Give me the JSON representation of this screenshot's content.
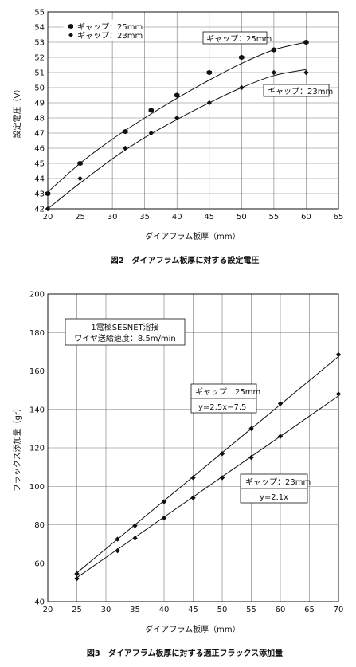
{
  "chart_data": [
    {
      "type": "scatter",
      "caption": "図2　ダイアフラム板厚に対する設定電圧",
      "xlabel": "ダイアフラム板厚（mm）",
      "ylabel": "設定電圧（V）",
      "xlim": [
        20,
        65
      ],
      "ylim": [
        42,
        55
      ],
      "xticks": [
        20,
        25,
        30,
        35,
        40,
        45,
        50,
        55,
        60,
        65
      ],
      "yticks": [
        42,
        43,
        44,
        45,
        46,
        47,
        48,
        49,
        50,
        51,
        52,
        53,
        54,
        55
      ],
      "grid": true,
      "legend_position": "top-left",
      "series": [
        {
          "name": "ギャップ：25mm",
          "marker": "hexagon",
          "x": [
            20,
            25,
            32,
            36,
            40,
            45,
            50,
            55,
            60
          ],
          "y": [
            43,
            45,
            47.1,
            48.5,
            49.5,
            51,
            52,
            52.5,
            53
          ],
          "fit": [
            [
              20,
              43.1
            ],
            [
              25,
              45
            ],
            [
              30,
              46.6
            ],
            [
              35,
              48
            ],
            [
              40,
              49.3
            ],
            [
              45,
              50.5
            ],
            [
              50,
              51.6
            ],
            [
              55,
              52.5
            ],
            [
              60,
              53
            ]
          ]
        },
        {
          "name": "ギャップ：23mm",
          "marker": "diamond",
          "x": [
            20,
            25,
            32,
            36,
            40,
            45,
            50,
            55,
            60
          ],
          "y": [
            42,
            44,
            46,
            47,
            48,
            49,
            50,
            51,
            51
          ],
          "fit": [
            [
              20,
              42
            ],
            [
              25,
              43.7
            ],
            [
              30,
              45.3
            ],
            [
              35,
              46.7
            ],
            [
              40,
              47.9
            ],
            [
              45,
              49
            ],
            [
              50,
              50
            ],
            [
              55,
              50.8
            ],
            [
              60,
              51.2
            ]
          ]
        }
      ],
      "annotations": [
        {
          "text": "ギャップ：25mm",
          "x": 53,
          "y": 53.6
        },
        {
          "text": "ギャップ：23mm",
          "x": 58,
          "y": 51.5
        }
      ]
    },
    {
      "type": "scatter",
      "caption": "図3　ダイアフラム板厚に対する適正フラックス添加量",
      "xlabel": "ダイアフラム板厚（mm）",
      "ylabel": "フラックス添加量（gr）",
      "xlim": [
        20,
        70
      ],
      "ylim": [
        40,
        200
      ],
      "xticks": [
        20,
        25,
        30,
        35,
        40,
        45,
        50,
        55,
        60,
        65,
        70
      ],
      "yticks": [
        40,
        60,
        80,
        100,
        120,
        140,
        160,
        180,
        200
      ],
      "grid": true,
      "info_box": [
        "1電極SESNET溶接",
        "ワイヤ送給速度：8.5m/min"
      ],
      "series": [
        {
          "label": "ギャップ：25mm",
          "equation": "y=2.5x−7.5",
          "marker": "diamond",
          "x": [
            25,
            32,
            35,
            40,
            45,
            50,
            55,
            60,
            70
          ],
          "y": [
            54.5,
            72.5,
            79.5,
            92,
            104.5,
            117,
            130,
            143,
            168.5
          ],
          "fit": [
            [
              25,
              55
            ],
            [
              70,
              167.5
            ]
          ]
        },
        {
          "label": "ギャップ：23mm",
          "equation": "y=2.1x",
          "marker": "diamond",
          "x": [
            25,
            32,
            35,
            40,
            45,
            50,
            55,
            60,
            70
          ],
          "y": [
            52,
            66.5,
            73,
            83.5,
            94,
            104.5,
            115,
            126,
            148
          ],
          "fit": [
            [
              25,
              52.5
            ],
            [
              70,
              147
            ]
          ]
        }
      ]
    }
  ]
}
